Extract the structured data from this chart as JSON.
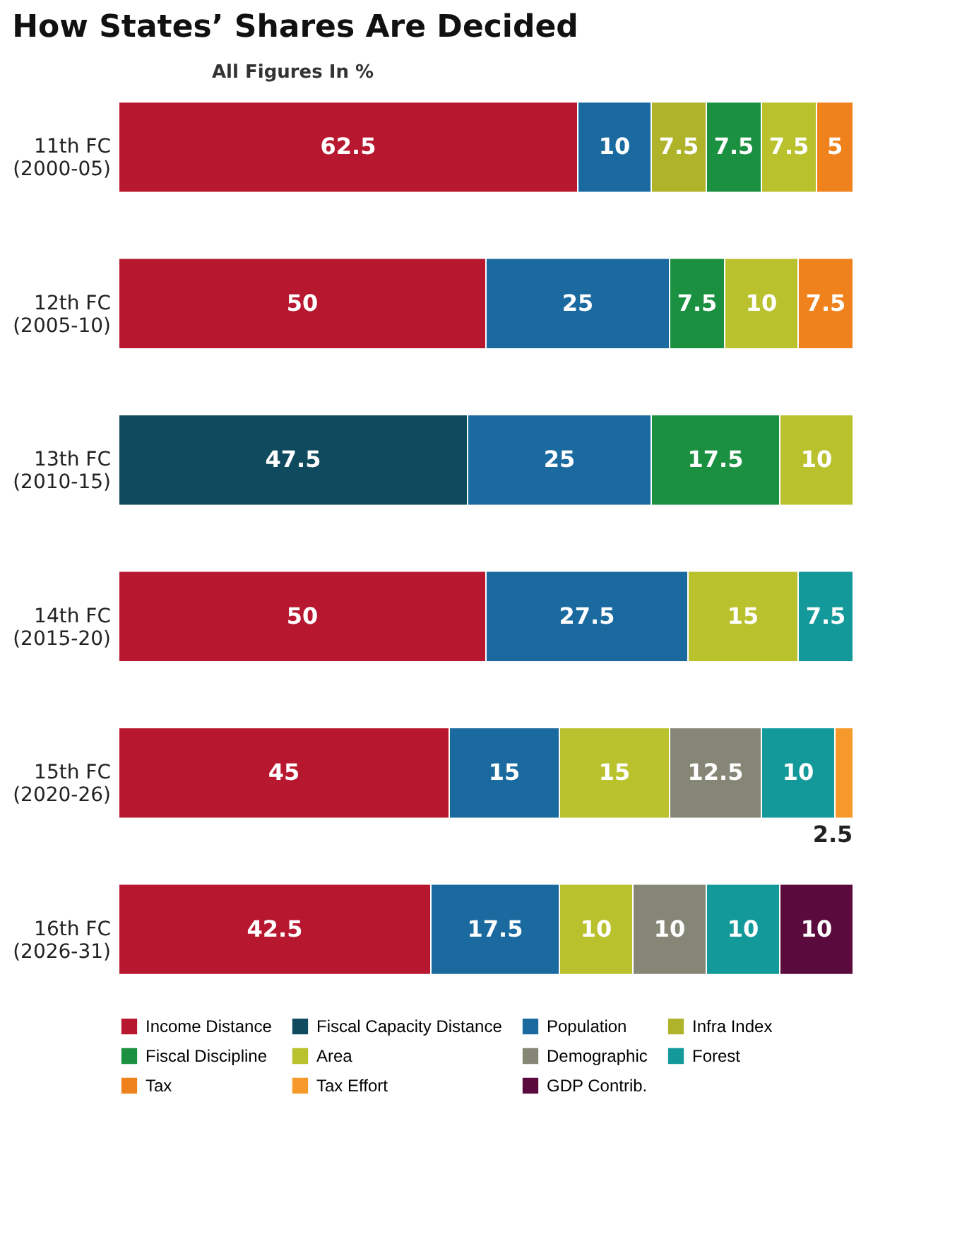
{
  "chart_data": {
    "type": "bar",
    "orientation": "horizontal",
    "stacked": true,
    "title": "How States’ Shares Are Decided",
    "categories": [
      "11th FC (2000-05)",
      "12th FC (2005-10)",
      "13th FC (2010-15)",
      "14th FC (2015-20)",
      "15th FC (2020-26)",
      "16th FC (2026-31)"
    ],
    "series": [
      {
        "name": "Income Distance",
        "color": "#b8182f",
        "values": [
          62.5,
          50,
          null,
          50,
          45,
          42.5
        ]
      },
      {
        "name": "Fiscal Capacity Distance",
        "color": "#0f4a5e",
        "values": [
          null,
          null,
          47.5,
          null,
          null,
          null
        ]
      },
      {
        "name": "Population",
        "color": "#1a6aa0",
        "values": [
          10,
          25,
          25,
          27.5,
          15,
          17.5
        ]
      },
      {
        "name": "Infra Index",
        "color": "#aeb32a",
        "values": [
          7.5,
          null,
          null,
          null,
          null,
          null
        ]
      },
      {
        "name": "Fiscal Discipline",
        "color": "#1a9040",
        "values": [
          7.5,
          7.5,
          17.5,
          null,
          null,
          null
        ]
      },
      {
        "name": "Area",
        "color": "#b9c12c",
        "values": [
          7.5,
          10,
          10,
          15,
          15,
          10
        ]
      },
      {
        "name": "Demographic",
        "color": "#868677",
        "values": [
          null,
          null,
          null,
          null,
          12.5,
          10
        ]
      },
      {
        "name": "Forest",
        "color": "#14999a",
        "values": [
          null,
          null,
          null,
          7.5,
          10,
          10
        ]
      },
      {
        "name": "Tax",
        "color": "#f0821e",
        "values": [
          5,
          7.5,
          null,
          null,
          null,
          null
        ]
      },
      {
        "name": "Tax Effort",
        "color": "#f59a2a",
        "values": [
          null,
          null,
          null,
          null,
          2.5,
          null
        ]
      },
      {
        "name": "GDP Contrib.",
        "color": "#5a0a3c",
        "values": [
          null,
          null,
          null,
          null,
          null,
          10
        ]
      }
    ],
    "xlim": [
      0,
      100
    ],
    "tick_labels": "y",
    "data_labels": true,
    "legend": "bottom",
    "annotations": [
      "All Figures In %"
    ]
  }
}
